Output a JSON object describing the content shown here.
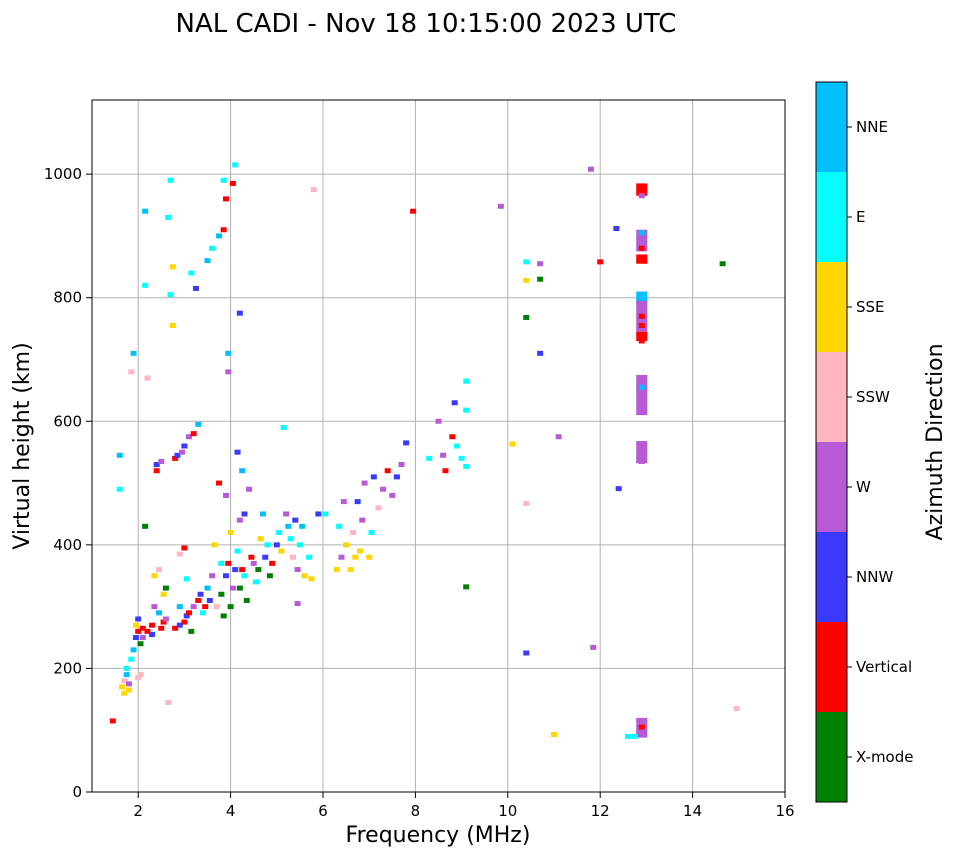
{
  "chart_data": {
    "type": "scatter",
    "title": "NAL CADI - Nov 18 10:15:00 2023 UTC",
    "xlabel": "Frequency (MHz)",
    "ylabel": "Virtual height (km)",
    "colorbar_label": "Azimuth Direction",
    "xlim": [
      1,
      16
    ],
    "ylim": [
      0,
      1120
    ],
    "xticks": [
      2,
      4,
      6,
      8,
      10,
      12,
      14,
      16
    ],
    "yticks": [
      0,
      200,
      400,
      600,
      800,
      1000
    ],
    "grid": true,
    "categories": [
      {
        "name": "X-mode",
        "color": "#008000"
      },
      {
        "name": "Vertical",
        "color": "#ff0000"
      },
      {
        "name": "NNW",
        "color": "#3a3aff"
      },
      {
        "name": "W",
        "color": "#b85ad6"
      },
      {
        "name": "SSW",
        "color": "#ffb6c1"
      },
      {
        "name": "SSE",
        "color": "#ffd700"
      },
      {
        "name": "E",
        "color": "#00ffff"
      },
      {
        "name": "NNE",
        "color": "#00bfff"
      }
    ],
    "points": [
      [
        1.45,
        115,
        1
      ],
      [
        1.6,
        490,
        6
      ],
      [
        1.6,
        545,
        7
      ],
      [
        1.65,
        170,
        5
      ],
      [
        1.7,
        180,
        4
      ],
      [
        1.7,
        160,
        5
      ],
      [
        1.75,
        200,
        6
      ],
      [
        1.75,
        190,
        7
      ],
      [
        1.8,
        175,
        3
      ],
      [
        1.8,
        165,
        5
      ],
      [
        1.85,
        215,
        6
      ],
      [
        1.85,
        680,
        4
      ],
      [
        1.9,
        230,
        7
      ],
      [
        1.9,
        710,
        7
      ],
      [
        1.95,
        250,
        2
      ],
      [
        1.95,
        270,
        5
      ],
      [
        2.0,
        185,
        4
      ],
      [
        2.0,
        260,
        1
      ],
      [
        2.0,
        280,
        2
      ],
      [
        2.05,
        240,
        0
      ],
      [
        2.05,
        190,
        4
      ],
      [
        2.1,
        265,
        1
      ],
      [
        2.1,
        250,
        3
      ],
      [
        2.15,
        430,
        0
      ],
      [
        2.15,
        820,
        6
      ],
      [
        2.15,
        940,
        7
      ],
      [
        2.2,
        260,
        1
      ],
      [
        2.2,
        670,
        4
      ],
      [
        2.3,
        255,
        2
      ],
      [
        2.3,
        270,
        1
      ],
      [
        2.35,
        300,
        3
      ],
      [
        2.35,
        350,
        5
      ],
      [
        2.4,
        520,
        1
      ],
      [
        2.4,
        530,
        2
      ],
      [
        2.45,
        290,
        7
      ],
      [
        2.45,
        360,
        4
      ],
      [
        2.5,
        265,
        1
      ],
      [
        2.5,
        535,
        3
      ],
      [
        2.55,
        275,
        1
      ],
      [
        2.55,
        320,
        5
      ],
      [
        2.6,
        280,
        3
      ],
      [
        2.6,
        330,
        0
      ],
      [
        2.65,
        145,
        4
      ],
      [
        2.65,
        930,
        6
      ],
      [
        2.7,
        990,
        6
      ],
      [
        2.7,
        805,
        6
      ],
      [
        2.75,
        850,
        5
      ],
      [
        2.75,
        755,
        5
      ],
      [
        2.8,
        265,
        1
      ],
      [
        2.8,
        540,
        1
      ],
      [
        2.85,
        545,
        2
      ],
      [
        2.9,
        270,
        2
      ],
      [
        2.9,
        300,
        7
      ],
      [
        2.9,
        385,
        4
      ],
      [
        2.95,
        550,
        3
      ],
      [
        3.0,
        275,
        1
      ],
      [
        3.0,
        395,
        1
      ],
      [
        3.0,
        560,
        2
      ],
      [
        3.05,
        285,
        2
      ],
      [
        3.05,
        345,
        6
      ],
      [
        3.1,
        290,
        1
      ],
      [
        3.1,
        575,
        3
      ],
      [
        3.15,
        260,
        0
      ],
      [
        3.15,
        840,
        6
      ],
      [
        3.2,
        300,
        3
      ],
      [
        3.2,
        580,
        1
      ],
      [
        3.25,
        815,
        2
      ],
      [
        3.3,
        310,
        1
      ],
      [
        3.3,
        595,
        7
      ],
      [
        3.35,
        320,
        2
      ],
      [
        3.4,
        290,
        6
      ],
      [
        3.45,
        300,
        1
      ],
      [
        3.5,
        330,
        7
      ],
      [
        3.5,
        860,
        7
      ],
      [
        3.55,
        310,
        2
      ],
      [
        3.6,
        350,
        3
      ],
      [
        3.6,
        880,
        6
      ],
      [
        3.65,
        400,
        5
      ],
      [
        3.7,
        300,
        4
      ],
      [
        3.75,
        500,
        1
      ],
      [
        3.75,
        900,
        7
      ],
      [
        3.8,
        320,
        0
      ],
      [
        3.8,
        370,
        6
      ],
      [
        3.85,
        285,
        0
      ],
      [
        3.85,
        910,
        1
      ],
      [
        3.85,
        990,
        6
      ],
      [
        3.9,
        350,
        2
      ],
      [
        3.9,
        480,
        3
      ],
      [
        3.9,
        960,
        1
      ],
      [
        3.95,
        370,
        1
      ],
      [
        3.95,
        680,
        3
      ],
      [
        3.95,
        710,
        7
      ],
      [
        4.0,
        300,
        0
      ],
      [
        4.0,
        420,
        5
      ],
      [
        4.05,
        330,
        3
      ],
      [
        4.05,
        985,
        1
      ],
      [
        4.1,
        360,
        2
      ],
      [
        4.1,
        1015,
        6
      ],
      [
        4.15,
        390,
        6
      ],
      [
        4.15,
        550,
        2
      ],
      [
        4.2,
        330,
        0
      ],
      [
        4.2,
        440,
        3
      ],
      [
        4.2,
        775,
        2
      ],
      [
        4.25,
        360,
        1
      ],
      [
        4.25,
        520,
        7
      ],
      [
        4.3,
        350,
        6
      ],
      [
        4.3,
        450,
        2
      ],
      [
        4.35,
        310,
        0
      ],
      [
        4.4,
        490,
        3
      ],
      [
        4.45,
        380,
        1
      ],
      [
        4.5,
        370,
        3
      ],
      [
        4.55,
        340,
        6
      ],
      [
        4.6,
        360,
        0
      ],
      [
        4.65,
        410,
        5
      ],
      [
        4.7,
        450,
        7
      ],
      [
        4.75,
        380,
        2
      ],
      [
        4.8,
        400,
        6
      ],
      [
        4.85,
        350,
        0
      ],
      [
        4.9,
        370,
        1
      ],
      [
        5.0,
        400,
        2
      ],
      [
        5.05,
        420,
        6
      ],
      [
        5.1,
        390,
        5
      ],
      [
        5.15,
        590,
        6
      ],
      [
        5.2,
        450,
        3
      ],
      [
        5.25,
        430,
        7
      ],
      [
        5.3,
        410,
        6
      ],
      [
        5.35,
        380,
        4
      ],
      [
        5.4,
        440,
        2
      ],
      [
        5.45,
        360,
        3
      ],
      [
        5.45,
        305,
        3
      ],
      [
        5.5,
        400,
        6
      ],
      [
        5.55,
        430,
        7
      ],
      [
        5.6,
        350,
        5
      ],
      [
        5.7,
        380,
        6
      ],
      [
        5.75,
        345,
        5
      ],
      [
        5.8,
        975,
        4
      ],
      [
        5.9,
        450,
        2
      ],
      [
        6.05,
        450,
        6
      ],
      [
        6.3,
        360,
        5
      ],
      [
        6.35,
        430,
        6
      ],
      [
        6.4,
        380,
        3
      ],
      [
        6.45,
        470,
        3
      ],
      [
        6.5,
        400,
        5
      ],
      [
        6.6,
        360,
        5
      ],
      [
        6.65,
        420,
        4
      ],
      [
        6.7,
        380,
        5
      ],
      [
        6.75,
        470,
        2
      ],
      [
        6.8,
        390,
        5
      ],
      [
        6.85,
        440,
        3
      ],
      [
        6.9,
        500,
        3
      ],
      [
        7.0,
        380,
        5
      ],
      [
        7.05,
        420,
        6
      ],
      [
        7.1,
        510,
        2
      ],
      [
        7.2,
        460,
        4
      ],
      [
        7.3,
        490,
        3
      ],
      [
        7.4,
        520,
        1
      ],
      [
        7.5,
        480,
        3
      ],
      [
        7.6,
        510,
        2
      ],
      [
        7.7,
        530,
        3
      ],
      [
        7.8,
        565,
        2
      ],
      [
        7.95,
        940,
        1
      ],
      [
        8.3,
        540,
        6
      ],
      [
        8.5,
        600,
        3
      ],
      [
        8.6,
        545,
        3
      ],
      [
        8.65,
        520,
        1
      ],
      [
        8.8,
        575,
        1
      ],
      [
        8.85,
        630,
        2
      ],
      [
        8.9,
        560,
        6
      ],
      [
        9.0,
        540,
        6
      ],
      [
        9.1,
        665,
        6
      ],
      [
        9.1,
        618,
        6
      ],
      [
        9.1,
        527,
        6
      ],
      [
        9.1,
        332,
        0
      ],
      [
        9.85,
        948,
        3
      ],
      [
        10.1,
        563,
        5
      ],
      [
        10.4,
        858,
        6
      ],
      [
        10.4,
        828,
        5
      ],
      [
        10.4,
        768,
        0
      ],
      [
        10.4,
        225,
        2
      ],
      [
        10.4,
        467,
        4
      ],
      [
        10.7,
        855,
        3
      ],
      [
        10.7,
        710,
        2
      ],
      [
        10.7,
        830,
        0
      ],
      [
        11.0,
        93,
        5
      ],
      [
        11.1,
        575,
        3
      ],
      [
        11.8,
        1008,
        3
      ],
      [
        11.85,
        234,
        3
      ],
      [
        12.0,
        858,
        1
      ],
      [
        12.35,
        912,
        2
      ],
      [
        12.4,
        491,
        2
      ],
      [
        12.6,
        90,
        6
      ],
      [
        12.75,
        90,
        6
      ],
      [
        14.65,
        855,
        0
      ],
      [
        14.95,
        135,
        4
      ],
      [
        12.9,
        975,
        1
      ],
      [
        12.9,
        965,
        3
      ],
      [
        12.9,
        905,
        7
      ],
      [
        12.9,
        895,
        3
      ],
      [
        12.9,
        880,
        1
      ],
      [
        12.9,
        865,
        1
      ],
      [
        12.9,
        800,
        7
      ],
      [
        12.9,
        785,
        3
      ],
      [
        12.9,
        770,
        1
      ],
      [
        12.9,
        755,
        1
      ],
      [
        12.9,
        740,
        1
      ],
      [
        12.9,
        730,
        1
      ],
      [
        12.9,
        670,
        3
      ],
      [
        12.9,
        655,
        7
      ],
      [
        12.9,
        640,
        3
      ],
      [
        12.9,
        620,
        3
      ],
      [
        12.9,
        560,
        3
      ],
      [
        12.9,
        545,
        3
      ],
      [
        12.9,
        535,
        3
      ],
      [
        12.9,
        115,
        3
      ],
      [
        12.9,
        105,
        1
      ],
      [
        12.9,
        95,
        3
      ]
    ],
    "rects": [
      [
        12.78,
        13.02,
        965,
        985,
        1
      ],
      [
        12.78,
        13.02,
        875,
        910,
        3
      ],
      [
        12.78,
        13.02,
        855,
        870,
        1
      ],
      [
        12.78,
        13.02,
        790,
        810,
        7
      ],
      [
        12.78,
        13.02,
        745,
        795,
        3
      ],
      [
        12.78,
        13.02,
        730,
        745,
        1
      ],
      [
        12.78,
        13.02,
        610,
        675,
        3
      ],
      [
        12.78,
        13.02,
        532,
        568,
        3
      ],
      [
        12.78,
        13.02,
        88,
        120,
        3
      ]
    ]
  }
}
